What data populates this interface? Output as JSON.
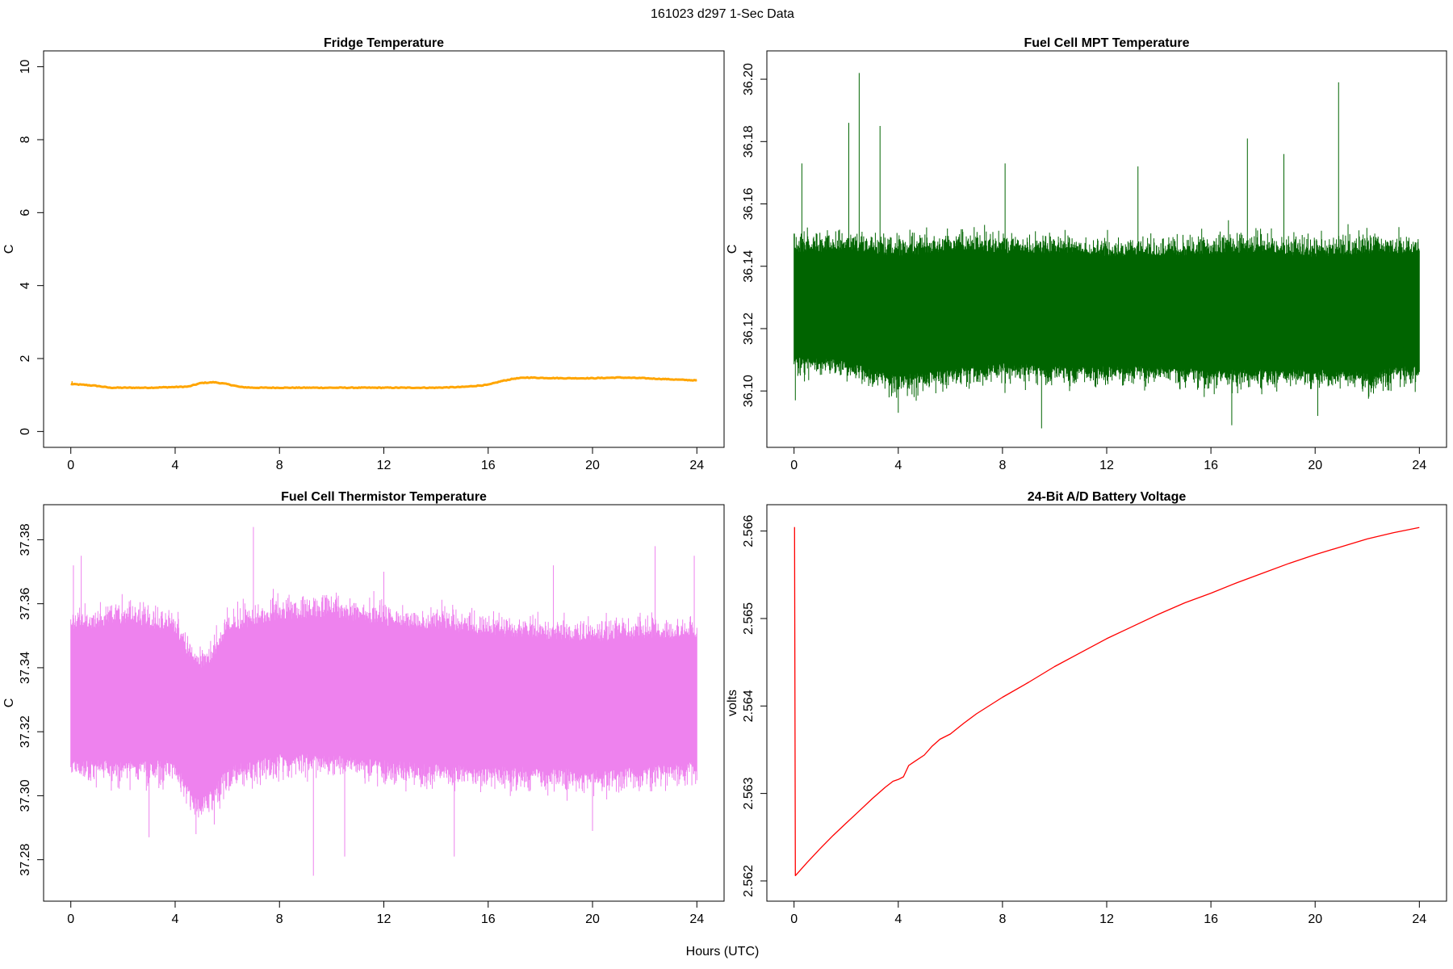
{
  "figure": {
    "suptitle": "161023   d297   1-Sec Data",
    "xlabel": "Hours (UTC)"
  },
  "chart_data": [
    {
      "type": "line",
      "title": "Fridge Temperature",
      "ylabel": "C",
      "color": "#FFA500",
      "xlim": [
        0,
        24
      ],
      "ylim": [
        0,
        10
      ],
      "xticks": [
        "0",
        "4",
        "8",
        "12",
        "16",
        "20",
        "24"
      ],
      "yticks": [
        "0",
        "2",
        "4",
        "6",
        "8",
        "10"
      ],
      "series": [
        {
          "x": [
            0,
            0.5,
            1,
            1.5,
            2,
            3,
            4,
            4.5,
            5,
            5.5,
            6,
            6.5,
            7,
            8,
            10,
            12,
            14,
            15,
            15.5,
            16,
            16.5,
            17,
            17.5,
            18,
            19,
            20,
            21,
            22,
            23,
            24
          ],
          "y": [
            1.3,
            1.28,
            1.25,
            1.2,
            1.2,
            1.2,
            1.22,
            1.23,
            1.33,
            1.35,
            1.3,
            1.22,
            1.2,
            1.2,
            1.2,
            1.2,
            1.2,
            1.22,
            1.25,
            1.28,
            1.38,
            1.45,
            1.48,
            1.47,
            1.46,
            1.46,
            1.48,
            1.46,
            1.43,
            1.4
          ],
          "spike": [
            0.05,
            1.38
          ]
        }
      ]
    },
    {
      "type": "line",
      "title": "Fuel Cell MPT Temperature",
      "ylabel": "C",
      "color": "#006400",
      "xlim": [
        0,
        24
      ],
      "ylim": [
        36.087,
        36.204
      ],
      "xticks": [
        "0",
        "4",
        "8",
        "12",
        "16",
        "20",
        "24"
      ],
      "yticks": [
        "36.10",
        "36.12",
        "36.14",
        "36.16",
        "36.18",
        "36.20"
      ],
      "series": [
        {
          "x": [
            0,
            2,
            4,
            6,
            8,
            10,
            12,
            14,
            16,
            18,
            20,
            22,
            24
          ],
          "band_low": [
            36.11,
            36.109,
            36.104,
            36.106,
            36.108,
            36.107,
            36.107,
            36.107,
            36.106,
            36.106,
            36.106,
            36.105,
            36.108
          ],
          "band_high": [
            36.145,
            36.146,
            36.144,
            36.146,
            36.145,
            36.145,
            36.144,
            36.144,
            36.145,
            36.145,
            36.144,
            36.145,
            36.145
          ],
          "spikes": [
            [
              2.5,
              36.202
            ],
            [
              2.1,
              36.186
            ],
            [
              3.3,
              36.185
            ],
            [
              0.3,
              36.173
            ],
            [
              8.1,
              36.173
            ],
            [
              17.4,
              36.181
            ],
            [
              20.9,
              36.199
            ],
            [
              18.8,
              36.176
            ],
            [
              13.2,
              36.172
            ],
            [
              9.5,
              36.088
            ],
            [
              4.0,
              36.093
            ],
            [
              16.8,
              36.089
            ],
            [
              20.1,
              36.092
            ],
            [
              0.05,
              36.097
            ]
          ]
        }
      ]
    },
    {
      "type": "line",
      "title": "Fuel Cell Thermistor Temperature",
      "ylabel": "C",
      "color": "#EE82EE",
      "xlim": [
        0,
        24
      ],
      "ylim": [
        37.272,
        37.386
      ],
      "xticks": [
        "0",
        "4",
        "8",
        "12",
        "16",
        "20",
        "24"
      ],
      "yticks": [
        "37.28",
        "37.30",
        "37.32",
        "37.34",
        "37.36",
        "37.38"
      ],
      "series": [
        {
          "x": [
            0,
            2,
            4,
            4.5,
            5,
            5.5,
            6,
            8,
            10,
            12,
            14,
            16,
            18,
            20,
            22,
            24
          ],
          "band_low": [
            37.31,
            37.31,
            37.31,
            37.302,
            37.298,
            37.302,
            37.308,
            37.312,
            37.312,
            37.31,
            37.309,
            37.308,
            37.308,
            37.307,
            37.308,
            37.31
          ],
          "band_high": [
            37.352,
            37.355,
            37.352,
            37.344,
            37.34,
            37.344,
            37.352,
            37.356,
            37.357,
            37.354,
            37.353,
            37.351,
            37.35,
            37.349,
            37.35,
            37.35
          ],
          "spikes": [
            [
              7.0,
              37.384
            ],
            [
              9.3,
              37.275
            ],
            [
              10.5,
              37.281
            ],
            [
              14.7,
              37.281
            ],
            [
              3.0,
              37.287
            ],
            [
              4.8,
              37.288
            ],
            [
              5.5,
              37.291
            ],
            [
              22.4,
              37.378
            ],
            [
              0.4,
              37.375
            ],
            [
              12.0,
              37.37
            ],
            [
              18.5,
              37.372
            ],
            [
              0.1,
              37.372
            ],
            [
              23.9,
              37.375
            ],
            [
              20.0,
              37.289
            ]
          ]
        }
      ]
    },
    {
      "type": "line",
      "title": "24-Bit A/D Battery Voltage",
      "ylabel": "volts",
      "color": "#FF0000",
      "xlim": [
        0,
        24
      ],
      "ylim": [
        2.56195,
        2.56612
      ],
      "xticks": [
        "0",
        "4",
        "8",
        "12",
        "16",
        "20",
        "24"
      ],
      "yticks": [
        "2.562",
        "2.563",
        "2.564",
        "2.565",
        "2.566"
      ],
      "series": [
        {
          "x": [
            0,
            0.02,
            0.05,
            0.5,
            1,
            1.5,
            2,
            2.5,
            3,
            3.5,
            3.8,
            4,
            4.2,
            4.4,
            4.6,
            5,
            5.3,
            5.6,
            6,
            6.5,
            7,
            8,
            9,
            10,
            11,
            12,
            13,
            14,
            15,
            16,
            17,
            18,
            19,
            20,
            21,
            22,
            23,
            24
          ],
          "y": [
            2.56604,
            2.56604,
            2.56206,
            2.56221,
            2.56237,
            2.56252,
            2.56266,
            2.5628,
            2.56294,
            2.56307,
            2.56314,
            2.56316,
            2.56319,
            2.56332,
            2.56336,
            2.56344,
            2.56354,
            2.56362,
            2.56368,
            2.5638,
            2.56391,
            2.5641,
            2.56427,
            2.56445,
            2.56461,
            2.56477,
            2.56491,
            2.56505,
            2.56518,
            2.56529,
            2.56541,
            2.56552,
            2.56563,
            2.56573,
            2.56582,
            2.56591,
            2.56598,
            2.56604
          ]
        }
      ]
    }
  ]
}
